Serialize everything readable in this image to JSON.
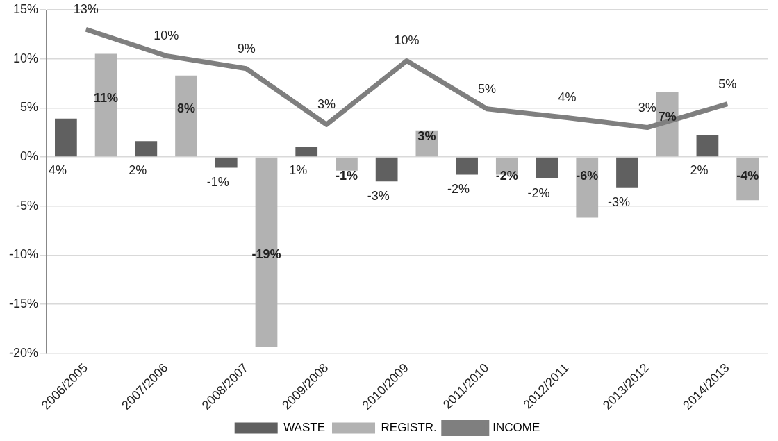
{
  "chart_data": {
    "type": "bar",
    "categories": [
      "2006/2005",
      "2007/2006",
      "2008/2007",
      "2009/2008",
      "2010/2009",
      "2011/2010",
      "2012/2011",
      "2013/2012",
      "2014/2013"
    ],
    "series": [
      {
        "name": "WASTE",
        "color": "#606060",
        "values": [
          3.9,
          1.6,
          -1.1,
          1.0,
          -2.5,
          -1.8,
          -2.2,
          -3.1,
          2.2
        ],
        "value_labels": [
          "4%",
          "2%",
          "-1%",
          "1%",
          "-3%",
          "-2%",
          "-2%",
          "-3%",
          "2%"
        ]
      },
      {
        "name": "REGISTR.",
        "color": "#b2b2b2",
        "values": [
          10.5,
          8.3,
          -19.4,
          -1.4,
          2.7,
          -1.8,
          -6.2,
          6.6,
          -4.4
        ],
        "value_labels": [
          "11%",
          "8%",
          "-19%",
          "-1%",
          "3%",
          "-2%",
          "-6%",
          "7%",
          "-4%"
        ]
      },
      {
        "name": "INCOME",
        "type": "line",
        "color": "#7f7f7f",
        "values": [
          13.0,
          10.3,
          9.0,
          3.3,
          9.8,
          4.9,
          4.0,
          3.0,
          5.4
        ],
        "value_labels": [
          "13%",
          "10%",
          "9%",
          "3%",
          "10%",
          "5%",
          "4%",
          "3%",
          "5%"
        ]
      }
    ],
    "ylim": [
      -20,
      15
    ],
    "yticks": [
      {
        "value": -20,
        "label": "-20%"
      },
      {
        "value": -15,
        "label": "-15%"
      },
      {
        "value": -10,
        "label": "-10%"
      },
      {
        "value": -5,
        "label": "-5%"
      },
      {
        "value": 0,
        "label": "0%"
      },
      {
        "value": 5,
        "label": "5%"
      },
      {
        "value": 10,
        "label": "10%"
      },
      {
        "value": 15,
        "label": "15%"
      }
    ],
    "grid": "y",
    "legend": "bottom"
  }
}
